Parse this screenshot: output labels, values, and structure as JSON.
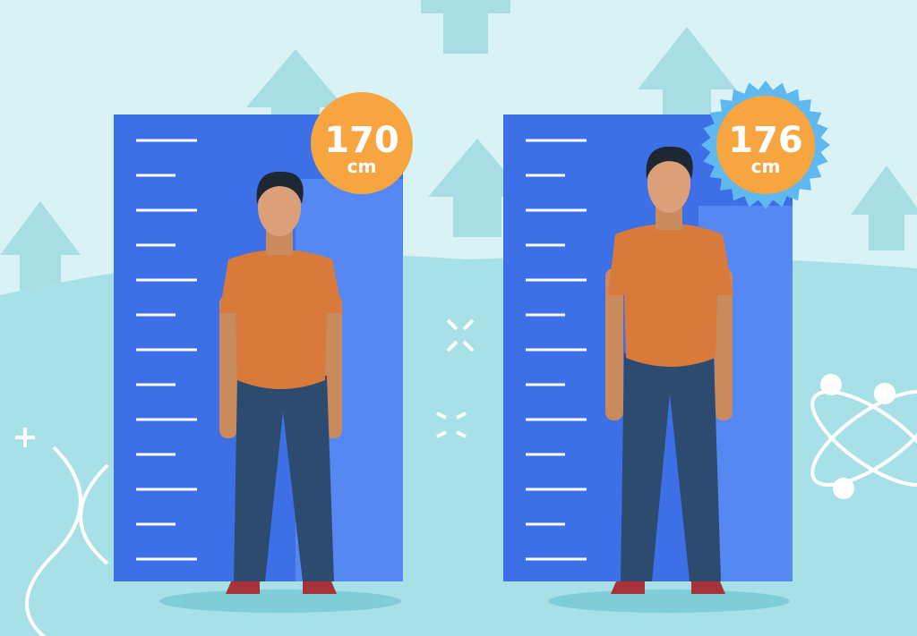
{
  "badges": [
    {
      "value": "170",
      "unit": "cm"
    },
    {
      "value": "176",
      "unit": "cm"
    }
  ]
}
